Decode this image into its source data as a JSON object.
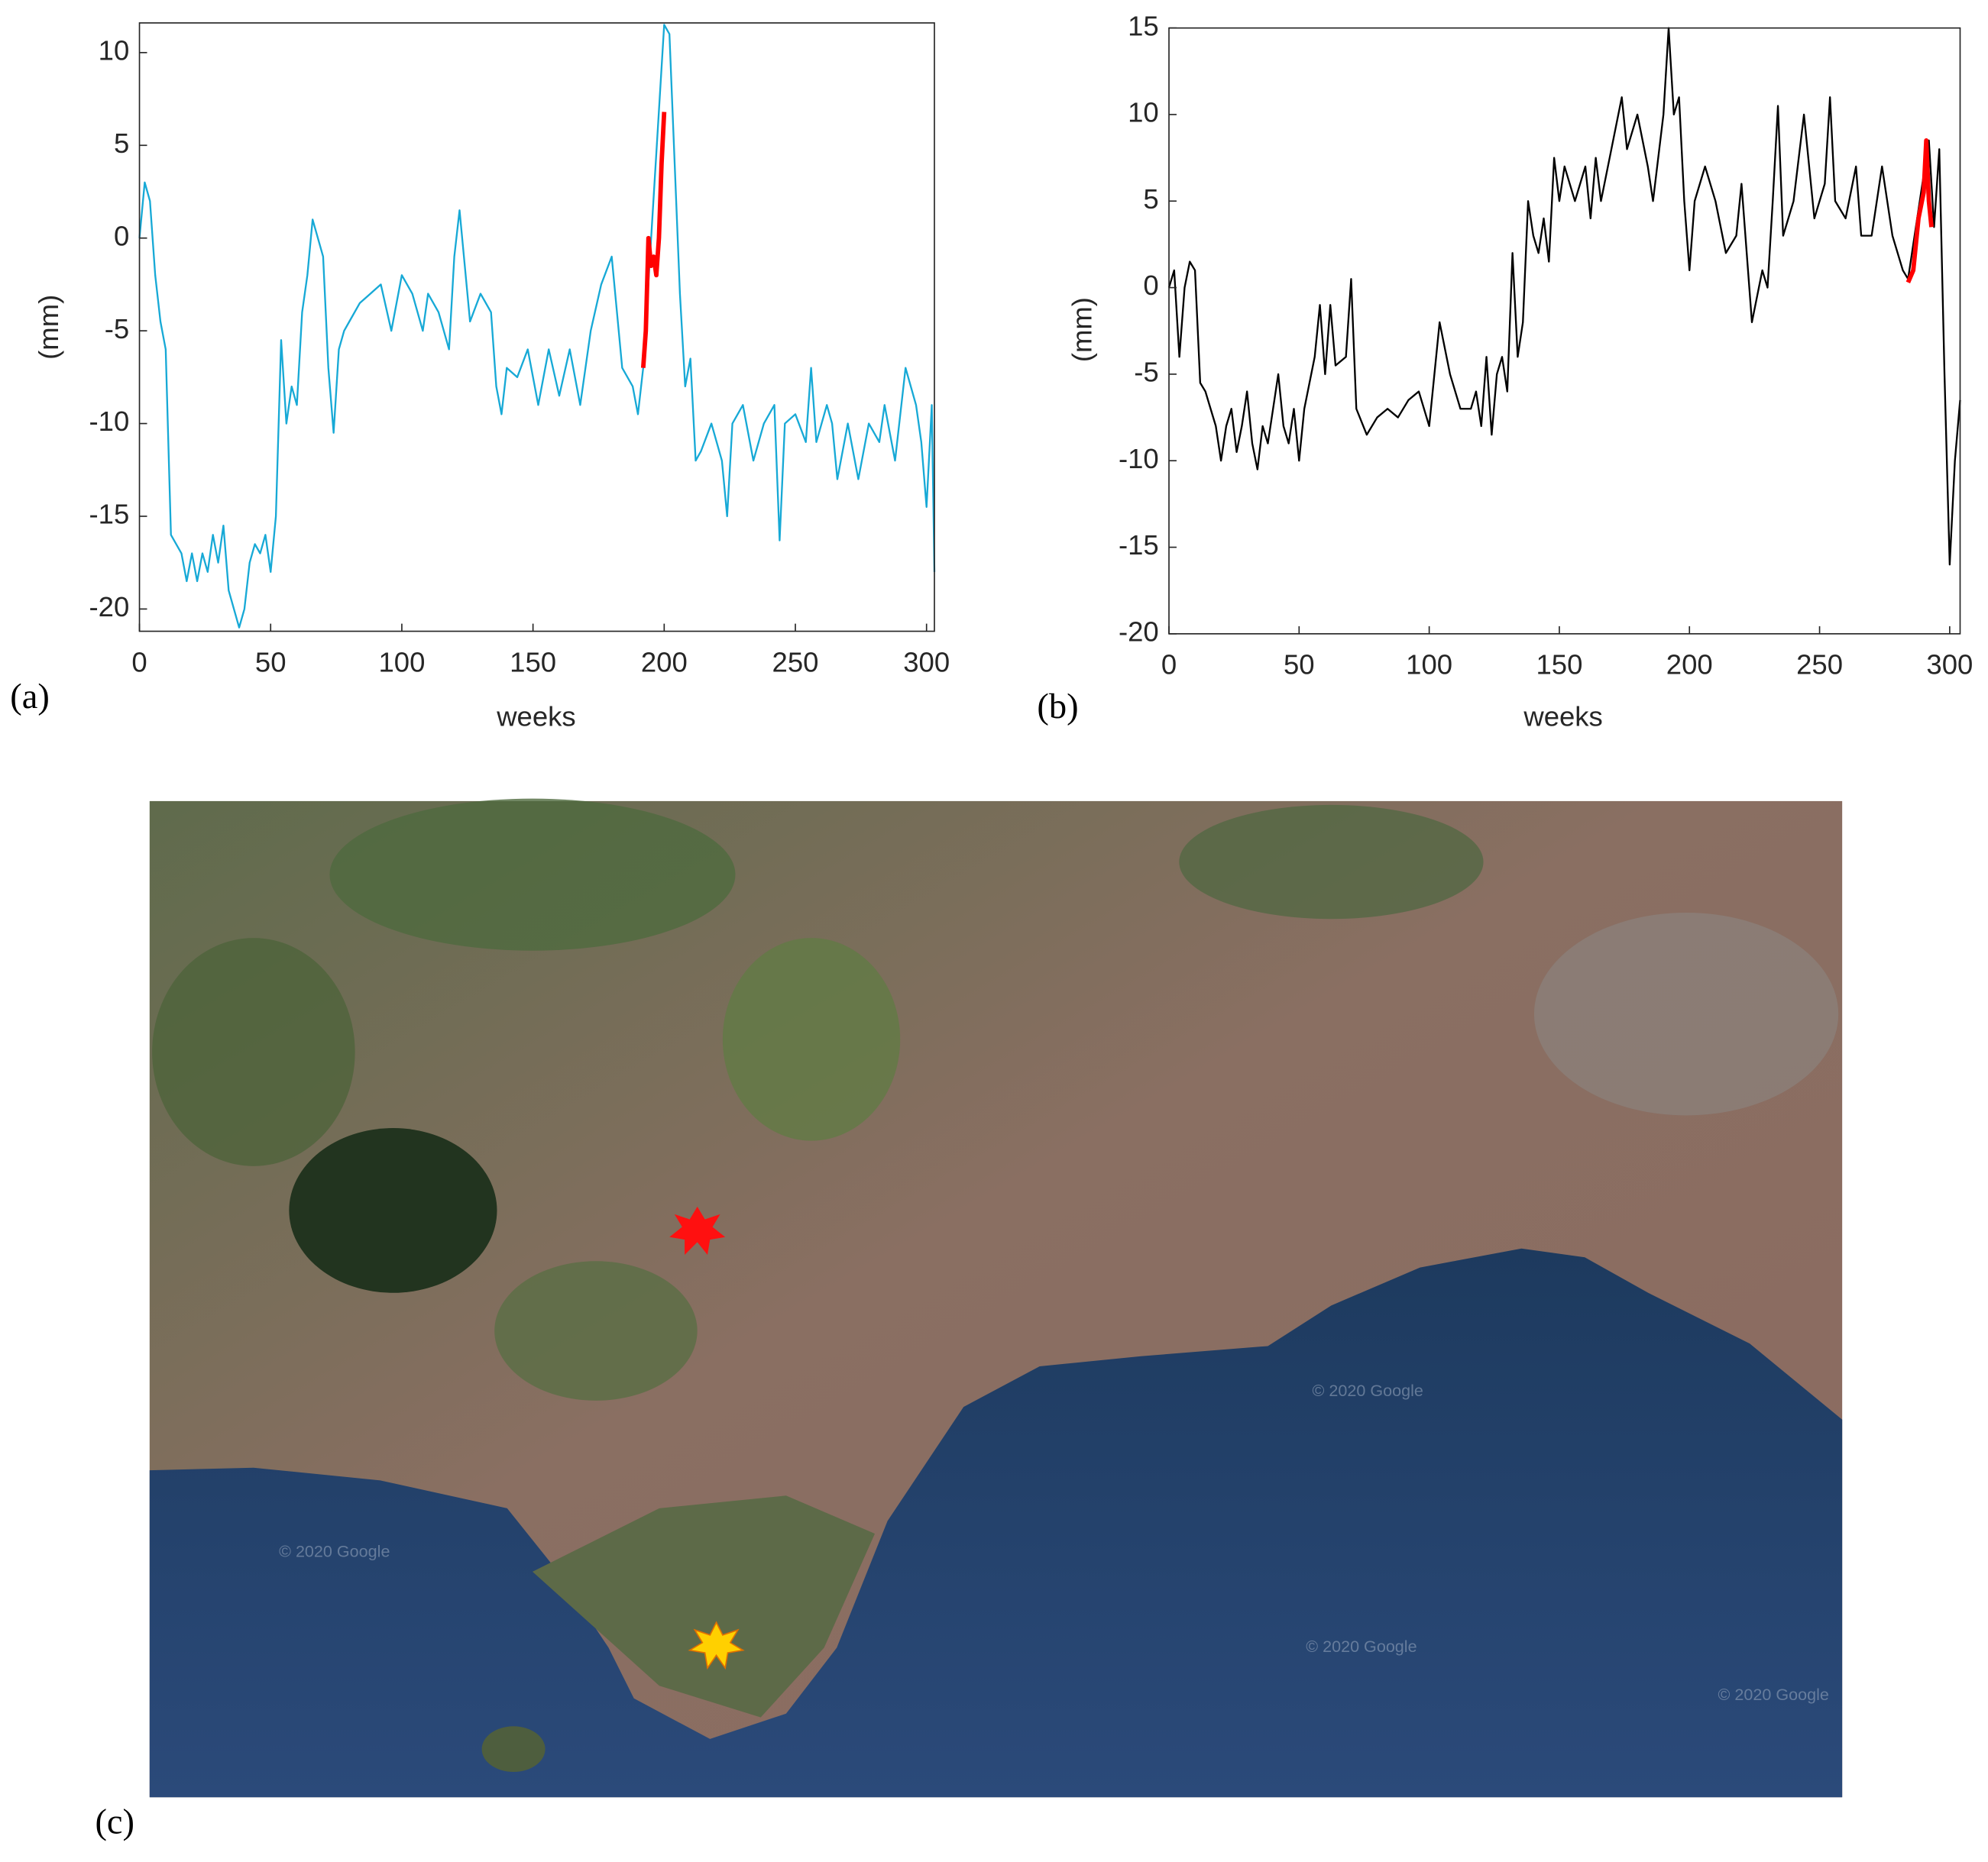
{
  "chart_data": [
    {
      "type": "line",
      "panel_label": "(a)",
      "xlabel": "weeks",
      "ylabel": "(mm)",
      "xlim": [
        0,
        303
      ],
      "ylim": [
        -21.2,
        11.6
      ],
      "xticks": [
        0,
        50,
        100,
        150,
        200,
        250,
        300
      ],
      "yticks": [
        -20,
        -15,
        -10,
        -5,
        0,
        5,
        10
      ],
      "series": [
        {
          "color": "#17a9d6",
          "x": [
            0,
            2,
            4,
            6,
            8,
            10,
            12,
            14,
            16,
            18,
            20,
            22,
            24,
            26,
            28,
            30,
            32,
            34,
            36,
            38,
            40,
            42,
            44,
            46,
            48,
            50,
            52,
            54,
            56,
            58,
            60,
            62,
            64,
            66,
            68,
            70,
            72,
            74,
            76,
            78,
            80,
            84,
            88,
            92,
            96,
            100,
            104,
            108,
            110,
            114,
            118,
            120,
            122,
            126,
            130,
            134,
            136,
            138,
            140,
            144,
            148,
            152,
            156,
            160,
            164,
            168,
            172,
            176,
            180,
            184,
            188,
            190,
            192,
            200,
            202,
            204,
            206,
            208,
            210,
            212,
            214,
            218,
            222,
            224,
            226,
            230,
            234,
            238,
            242,
            244,
            246,
            250,
            254,
            256,
            258,
            262,
            264,
            266,
            270,
            274,
            278,
            282,
            284,
            288,
            292,
            296,
            298,
            300,
            302,
            303
          ],
          "values": [
            0,
            3,
            2,
            -2,
            -4.5,
            -6,
            -16,
            -16.5,
            -17,
            -18.5,
            -17,
            -18.5,
            -17,
            -18,
            -16,
            -17.5,
            -15.5,
            -19,
            -20,
            -21,
            -20,
            -17.5,
            -16.5,
            -17,
            -16,
            -18,
            -15,
            -5.5,
            -10,
            -8,
            -9,
            -4,
            -2,
            1,
            0,
            -1,
            -7,
            -10.5,
            -6,
            -5,
            -4.5,
            -3.5,
            -3,
            -2.5,
            -5,
            -2,
            -3,
            -5,
            -3,
            -4,
            -6,
            -1,
            1.5,
            -4.5,
            -3,
            -4,
            -8,
            -9.5,
            -7,
            -7.5,
            -6,
            -9,
            -6,
            -8.5,
            -6,
            -9,
            -5,
            -2.5,
            -1,
            -7,
            -8,
            -9.5,
            -7,
            11.5,
            11,
            4,
            -3,
            -8,
            -6.5,
            -12,
            -11.5,
            -10,
            -12,
            -15,
            -10,
            -9,
            -12,
            -10,
            -9,
            -16.3,
            -10,
            -9.5,
            -11,
            -7,
            -11,
            -9,
            -10,
            -13,
            -10,
            -13,
            -10,
            -11,
            -9,
            -12,
            -7,
            -9,
            -11,
            -14.5,
            -9,
            -18
          ]
        },
        {
          "color": "#ff0000",
          "x": [
            192,
            193,
            194,
            195,
            196,
            197,
            198,
            199,
            200
          ],
          "values": [
            -7,
            -5,
            0,
            -1.5,
            -1,
            -2,
            0,
            4,
            6.8
          ]
        }
      ]
    },
    {
      "type": "line",
      "panel_label": "(b)",
      "xlabel": "weeks",
      "ylabel": "(mm)",
      "xlim": [
        0,
        304
      ],
      "ylim": [
        -20,
        15
      ],
      "xticks": [
        0,
        50,
        100,
        150,
        200,
        250,
        300
      ],
      "yticks": [
        -20,
        -15,
        -10,
        -5,
        0,
        5,
        10,
        15
      ],
      "series": [
        {
          "color": "#000000",
          "x": [
            0,
            2,
            4,
            6,
            8,
            10,
            12,
            14,
            16,
            18,
            20,
            22,
            24,
            26,
            28,
            30,
            32,
            34,
            36,
            38,
            40,
            42,
            44,
            46,
            48,
            50,
            52,
            56,
            58,
            60,
            62,
            64,
            68,
            70,
            72,
            76,
            80,
            84,
            88,
            92,
            96,
            100,
            104,
            108,
            112,
            116,
            118,
            120,
            122,
            124,
            126,
            128,
            130,
            132,
            134,
            136,
            138,
            140,
            142,
            144,
            146,
            148,
            150,
            152,
            156,
            160,
            162,
            164,
            166,
            170,
            174,
            176,
            180,
            184,
            186,
            190,
            192,
            194,
            196,
            198,
            200,
            202,
            206,
            210,
            214,
            218,
            220,
            224,
            228,
            230,
            232,
            234,
            236,
            240,
            244,
            248,
            252,
            254,
            256,
            260,
            264,
            266,
            270,
            274,
            278,
            282,
            284,
            292,
            294,
            296,
            298,
            300,
            302,
            304
          ],
          "values": [
            0,
            1,
            -4,
            0,
            1.5,
            1,
            -5.5,
            -6,
            -7,
            -8,
            -10,
            -8,
            -7,
            -9.5,
            -8,
            -6,
            -9,
            -10.5,
            -8,
            -9,
            -7,
            -5,
            -8,
            -9,
            -7,
            -10,
            -7,
            -4,
            -1,
            -5,
            -1,
            -4.5,
            -4,
            0.5,
            -7,
            -8.5,
            -7.5,
            -7,
            -7.5,
            -6.5,
            -6,
            -8,
            -2,
            -5,
            -7,
            -7,
            -6,
            -8,
            -4,
            -8.5,
            -5,
            -4,
            -6,
            2,
            -4,
            -2,
            5,
            3,
            2,
            4,
            1.5,
            7.5,
            5,
            7,
            5,
            7,
            4,
            7.5,
            5,
            8,
            11,
            8,
            10,
            7,
            5,
            10,
            15,
            10,
            11,
            5,
            1,
            5,
            7,
            5,
            2,
            3,
            6,
            -2,
            1,
            0,
            5,
            10.5,
            3,
            5,
            10,
            4,
            6,
            11,
            5,
            4,
            7,
            3,
            3,
            7,
            3,
            1,
            0.5,
            8.5,
            3.5,
            8,
            -5,
            -16,
            -10,
            -6.5
          ]
        },
        {
          "color": "#ff0000",
          "x": [
            284,
            286,
            288,
            290,
            291,
            292,
            293
          ],
          "values": [
            0.3,
            1,
            4,
            5.5,
            8.5,
            5,
            3.5
          ]
        }
      ]
    }
  ],
  "map": {
    "panel_label": "(c)",
    "watermark": "© 2020 Google"
  }
}
